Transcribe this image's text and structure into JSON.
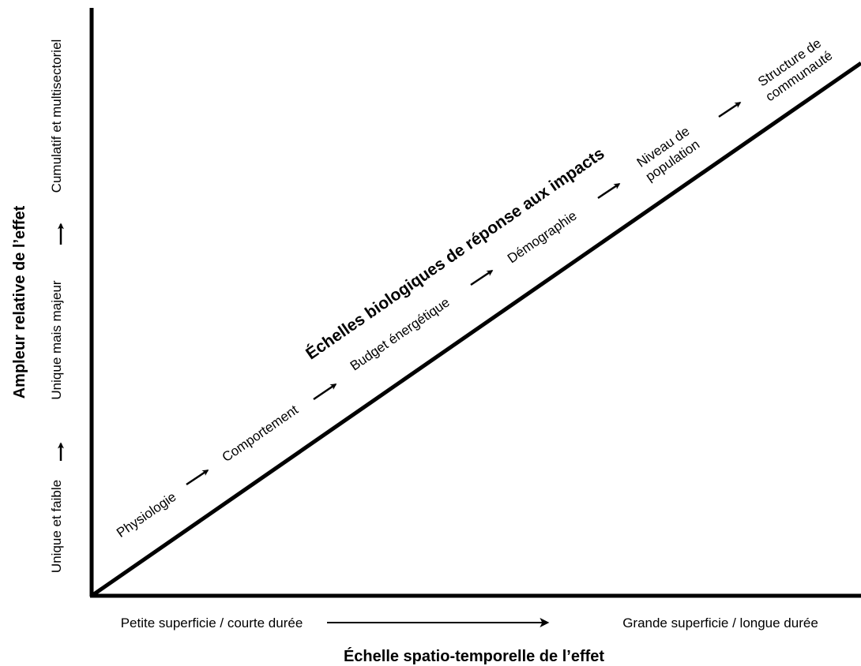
{
  "diagram": {
    "title": "Échelles biologiques de réponse aux impacts",
    "x_axis_title": "Échelle spatio-temporelle de l’effet",
    "y_axis_title": "Ampleur relative de l’effet",
    "x_axis": {
      "start": "Petite superficie / courte durée",
      "end": "Grande superficie / longue durée"
    },
    "y_axis": {
      "levels": [
        "Unique et faible",
        "Unique mais majeur",
        "Cumulatif et multisectoriel"
      ]
    },
    "stages": [
      {
        "lines": [
          "Physiologie"
        ]
      },
      {
        "lines": [
          "Comportement"
        ]
      },
      {
        "lines": [
          "Budget énergétique"
        ]
      },
      {
        "lines": [
          "Démographie"
        ]
      },
      {
        "lines": [
          "Niveau de",
          "population"
        ]
      },
      {
        "lines": [
          "Structure de",
          "communauté"
        ]
      }
    ]
  }
}
